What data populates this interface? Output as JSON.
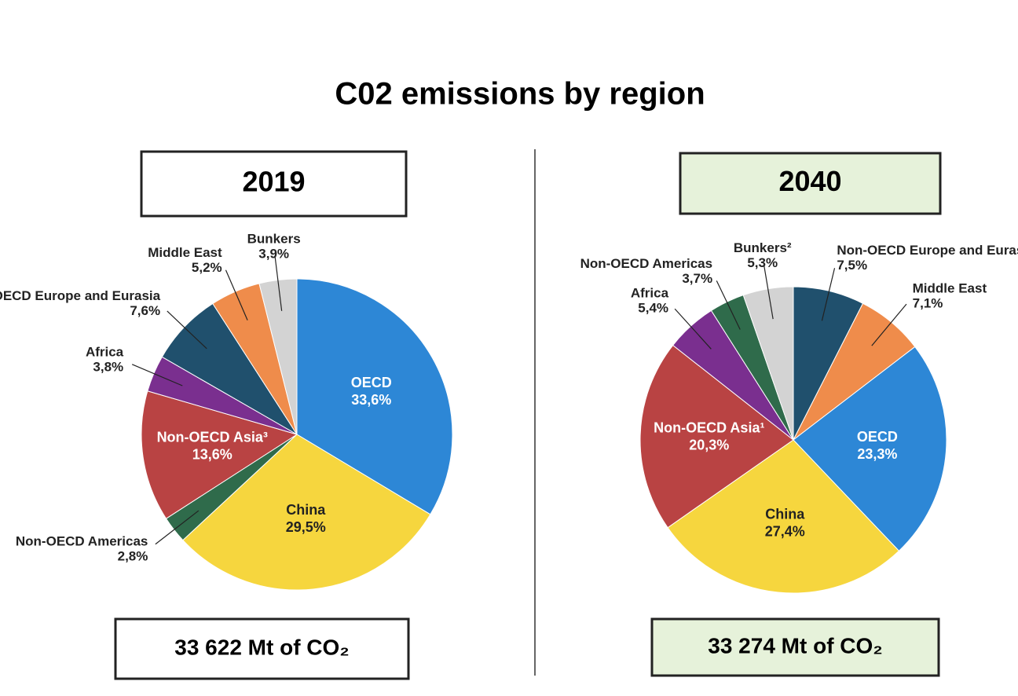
{
  "title": "C02 emissions by region",
  "chart_data": [
    {
      "type": "pie",
      "title": "2019",
      "total": "33 622 Mt of CO₂",
      "box_color": "#ffffff",
      "categories": [
        "OECD",
        "China",
        "Non-OECD Americas",
        "Non-OECD Asia³",
        "Africa",
        "Non-OECD Europe and Eurasia",
        "Middle East",
        "Bunkers"
      ],
      "values": [
        33.6,
        29.5,
        2.8,
        13.6,
        3.8,
        7.6,
        5.2,
        3.9
      ],
      "value_labels": [
        "33,6%",
        "29,5%",
        "2,8%",
        "13,6%",
        "3,8%",
        "7,6%",
        "5,2%",
        "3,9%"
      ],
      "colors": [
        "#2d87d6",
        "#f6d63e",
        "#2f6b4b",
        "#b94343",
        "#7a2f8f",
        "#20506d",
        "#ef8c4b",
        "#d3d3d3"
      ]
    },
    {
      "type": "pie",
      "title": "2040",
      "total": "33 274 Mt of CO₂",
      "box_color": "#e6f2da",
      "categories": [
        "Non-OECD Europe and Eurasia",
        "Middle East",
        "OECD",
        "China",
        "Non-OECD Asia¹",
        "Africa",
        "Non-OECD Americas",
        "Bunkers²"
      ],
      "values": [
        7.5,
        7.1,
        23.3,
        27.4,
        20.3,
        5.4,
        3.7,
        5.3
      ],
      "value_labels": [
        "7,5%",
        "7,1%",
        "23,3%",
        "27,4%",
        "20,3%",
        "5,4%",
        "3,7%",
        "5,3%"
      ],
      "colors": [
        "#20506d",
        "#ef8c4b",
        "#2d87d6",
        "#f6d63e",
        "#b94343",
        "#7a2f8f",
        "#2f6b4b",
        "#d3d3d3"
      ]
    }
  ]
}
